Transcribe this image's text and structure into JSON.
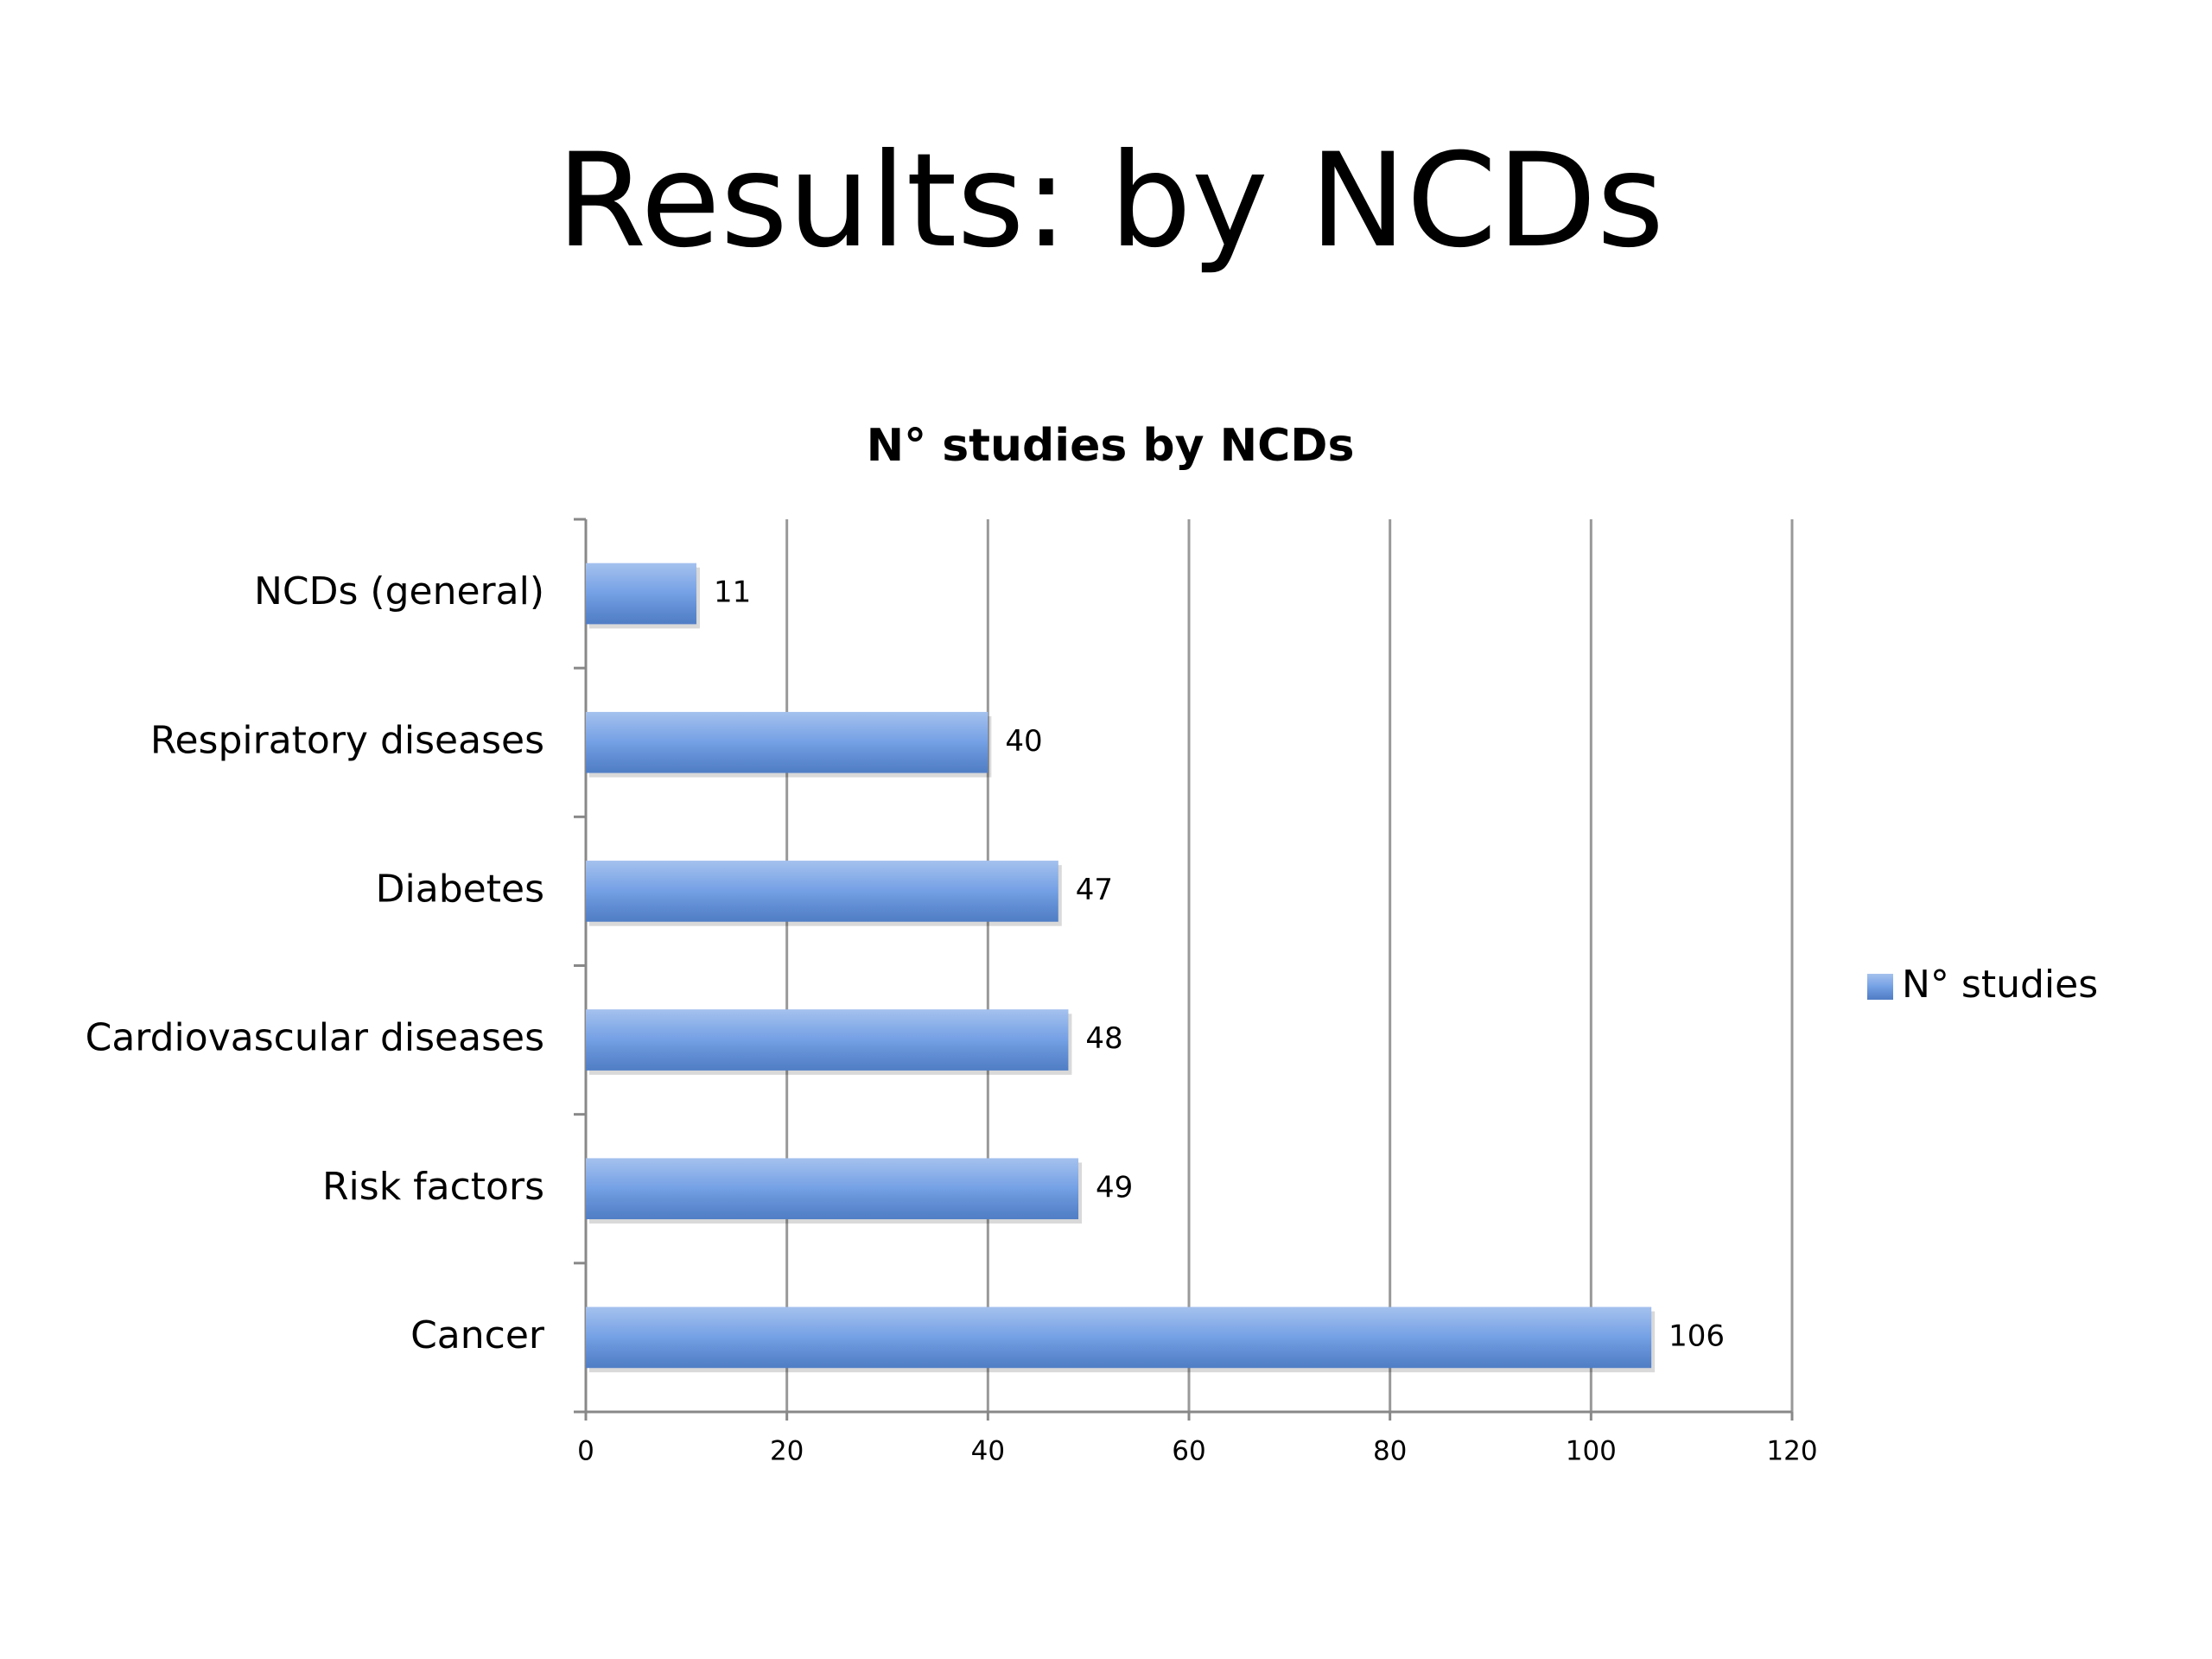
{
  "slide_title": "Results: by NCDs",
  "chart_data": {
    "type": "hbar",
    "title": "N° studies by NCDs",
    "categories": [
      "NCDs (general)",
      "Respiratory diseases",
      "Diabetes",
      "Cardiovascular diseases",
      "Risk factors",
      "Cancer"
    ],
    "series": [
      {
        "name": "N° studies",
        "color": "#5b8fe0",
        "values": [
          11,
          40,
          47,
          48,
          49,
          106
        ]
      }
    ],
    "xlim": [
      0,
      120
    ],
    "xticks": [
      0,
      20,
      40,
      60,
      80,
      100,
      120
    ],
    "grid": true,
    "legend": "right",
    "data_labels": true
  }
}
